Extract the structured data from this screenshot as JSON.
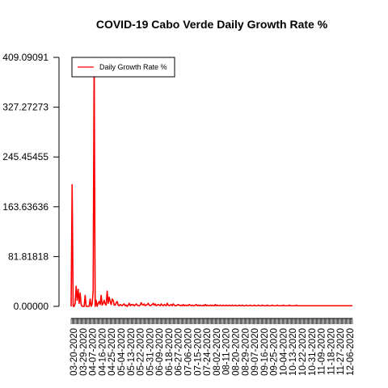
{
  "chart_data": {
    "type": "line",
    "title": "COVID-19 Cabo Verde Daily Growth Rate %",
    "xlabel": "",
    "ylabel": "",
    "ylim": [
      0,
      409.09091
    ],
    "y_ticks": [
      "0.00000",
      "81.81818",
      "163.63636",
      "245.45455",
      "327.27273",
      "409.09091"
    ],
    "x_tick_labels": [
      "03-20-2020",
      "03-29-2020",
      "04-07-2020",
      "04-16-2020",
      "04-25-2020",
      "05-04-2020",
      "05-13-2020",
      "05-22-2020",
      "05-31-2020",
      "06-09-2020",
      "06-18-2020",
      "06-27-2020",
      "07-06-2020",
      "07-15-2020",
      "07-24-2020",
      "08-02-2020",
      "08-11-2020",
      "08-20-2020",
      "08-29-2020",
      "09-07-2020",
      "09-16-2020",
      "09-25-2020",
      "10-04-2020",
      "10-13-2020",
      "10-22-2020",
      "10-31-2020",
      "11-09-2020",
      "11-18-2020",
      "11-27-2020",
      "12-06-2020"
    ],
    "x_start": "03-20-2020",
    "x_end": "12-12-2020",
    "legend_position": "top-left",
    "grid": false,
    "series": [
      {
        "name": "Daily Growth Rate %",
        "color": "#ff0000",
        "values": [
          0,
          200,
          0,
          0,
          5,
          33,
          10,
          28,
          5,
          22,
          3,
          0,
          0,
          0,
          18,
          0,
          0,
          0,
          0,
          12,
          0,
          4,
          25,
          409.09091,
          0,
          10,
          0,
          5,
          8,
          3,
          18,
          2,
          5,
          10,
          4,
          2,
          25,
          5,
          15,
          8,
          3,
          12,
          10,
          2,
          2,
          6,
          8,
          2,
          1,
          3,
          2,
          1,
          3,
          4,
          1,
          2,
          0,
          2,
          5,
          1,
          3,
          2,
          3,
          1,
          2,
          4,
          2,
          1,
          1,
          2,
          6,
          3,
          2,
          4,
          1,
          2,
          3,
          5,
          2,
          1,
          2,
          3,
          5,
          2,
          4,
          1,
          2,
          3,
          2,
          1,
          4,
          2,
          1,
          3,
          2,
          1,
          5,
          2,
          1,
          2,
          3,
          1,
          4,
          2,
          1,
          1,
          2,
          3,
          2,
          1,
          2,
          1,
          3,
          1,
          2,
          1,
          2,
          1,
          3,
          2,
          1,
          2,
          1,
          1,
          2,
          3,
          1,
          2,
          1,
          2,
          1,
          1,
          2,
          1,
          3,
          1,
          2,
          1,
          1,
          2,
          1,
          2,
          1,
          1,
          3,
          1,
          2,
          1,
          1,
          2,
          1,
          1,
          2,
          1,
          1,
          2,
          1,
          1,
          2,
          1,
          1,
          2,
          1,
          1,
          2,
          1,
          1,
          1,
          2,
          1,
          1,
          2,
          1,
          1,
          1,
          2,
          1,
          1,
          1,
          2,
          1,
          1,
          1,
          2,
          1,
          1,
          1,
          2,
          1,
          1,
          1,
          2,
          1,
          1,
          1,
          1,
          2,
          1,
          1,
          1,
          1,
          2,
          1,
          1,
          1,
          1,
          2,
          1,
          1,
          1,
          1,
          1,
          2,
          1,
          1,
          1,
          1,
          1,
          2,
          1,
          1,
          1,
          1,
          1,
          1,
          2,
          1,
          1,
          1,
          1,
          1,
          1,
          1,
          1,
          1,
          1,
          1,
          1,
          1,
          1,
          1,
          1,
          1,
          1,
          1,
          1,
          1,
          1,
          1,
          1,
          1,
          1,
          1,
          1,
          1,
          1,
          1,
          1,
          1,
          1,
          1,
          1,
          1,
          1,
          1,
          1,
          1,
          1,
          1,
          1,
          1,
          1,
          1,
          1,
          1,
          1,
          1,
          1,
          1,
          1,
          1,
          1
        ]
      }
    ]
  }
}
